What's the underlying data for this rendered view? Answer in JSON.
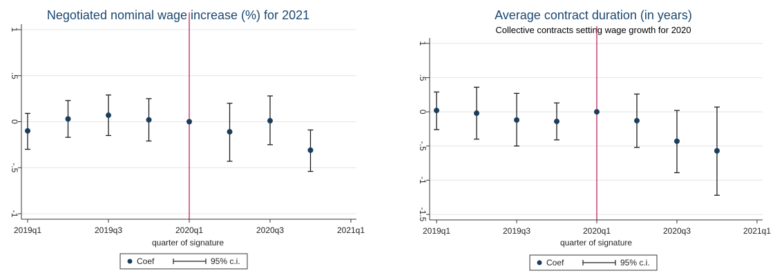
{
  "chart_data": [
    {
      "type": "scatter",
      "title": "Negotiated nominal wage increase (%) for 2021",
      "subtitle": "",
      "xlabel": "quarter of signature",
      "ylabel": "",
      "x_ticks": [
        "2019q1",
        "2019q3",
        "2020q1",
        "2020q3",
        "2021q1"
      ],
      "x_tick_values": [
        0,
        2,
        4,
        6,
        8
      ],
      "xlim": [
        0,
        8
      ],
      "y_ticks": [
        "-1",
        "-.5",
        "0",
        ".5",
        "1"
      ],
      "y_tick_values": [
        -1,
        -0.5,
        0,
        0.5,
        1
      ],
      "ylim": [
        -1,
        1
      ],
      "grid": "horizontal",
      "reference_line_x": 4,
      "series": [
        {
          "name": "Coef",
          "x": [
            0,
            1,
            2,
            3,
            4,
            5,
            6,
            7
          ],
          "values": [
            -0.1,
            0.03,
            0.07,
            0.02,
            0.0,
            -0.11,
            0.01,
            -0.31
          ],
          "ci_low": [
            -0.3,
            -0.17,
            -0.15,
            -0.21,
            0.0,
            -0.43,
            -0.25,
            -0.54
          ],
          "ci_high": [
            0.09,
            0.23,
            0.29,
            0.25,
            0.0,
            0.2,
            0.28,
            -0.09
          ]
        }
      ],
      "legend": {
        "placement": "bottom",
        "entries": [
          "Coef",
          "95% c.i."
        ]
      }
    },
    {
      "type": "scatter",
      "title": "Average contract duration (in years)",
      "subtitle": "Collective contracts setting wage growth for 2020",
      "xlabel": "quarter of signature",
      "ylabel": "",
      "x_ticks": [
        "2019q1",
        "2019q3",
        "2020q1",
        "2020q3",
        "2021q1"
      ],
      "x_tick_values": [
        0,
        2,
        4,
        6,
        8
      ],
      "xlim": [
        0,
        8
      ],
      "y_ticks": [
        "-1.5",
        "-1",
        "-.5",
        "0",
        ".5",
        "1"
      ],
      "y_tick_values": [
        -1.5,
        -1,
        -0.5,
        0,
        0.5,
        1
      ],
      "ylim": [
        -1.5,
        1
      ],
      "grid": "horizontal",
      "reference_line_x": 4,
      "series": [
        {
          "name": "Coef",
          "x": [
            0,
            1,
            2,
            3,
            4,
            5,
            6,
            7
          ],
          "values": [
            0.02,
            -0.02,
            -0.12,
            -0.14,
            0.0,
            -0.13,
            -0.43,
            -0.57
          ],
          "ci_low": [
            -0.26,
            -0.4,
            -0.5,
            -0.41,
            0.0,
            -0.52,
            -0.89,
            -1.22
          ],
          "ci_high": [
            0.29,
            0.36,
            0.27,
            0.13,
            0.0,
            0.26,
            0.02,
            0.07
          ]
        }
      ],
      "legend": {
        "placement": "bottom",
        "entries": [
          "Coef",
          "95% c.i."
        ]
      }
    }
  ],
  "colors": {
    "marker": "#1a3d5c",
    "ci": "#1a1a1a",
    "reference_line": "#c0326b",
    "title": "#1a476f",
    "grid": "#e4e4e4"
  }
}
